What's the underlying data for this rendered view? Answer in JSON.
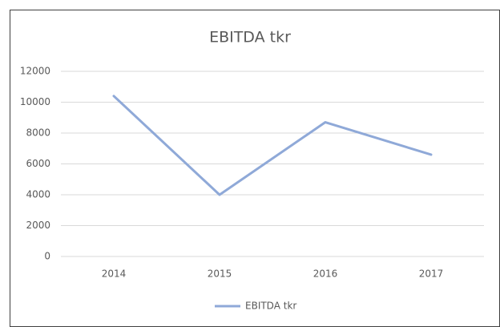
{
  "chart_data": {
    "type": "line",
    "title": "EBITDA tkr",
    "categories": [
      "2014",
      "2015",
      "2016",
      "2017"
    ],
    "series": [
      {
        "name": "EBITDA tkr",
        "color": "#8fa9d8",
        "values": [
          10400,
          4000,
          8700,
          6600
        ]
      }
    ],
    "ylim": [
      0,
      12000
    ],
    "yticks": [
      0,
      2000,
      4000,
      6000,
      8000,
      10000,
      12000
    ],
    "grid": true,
    "legend": "bottom"
  }
}
